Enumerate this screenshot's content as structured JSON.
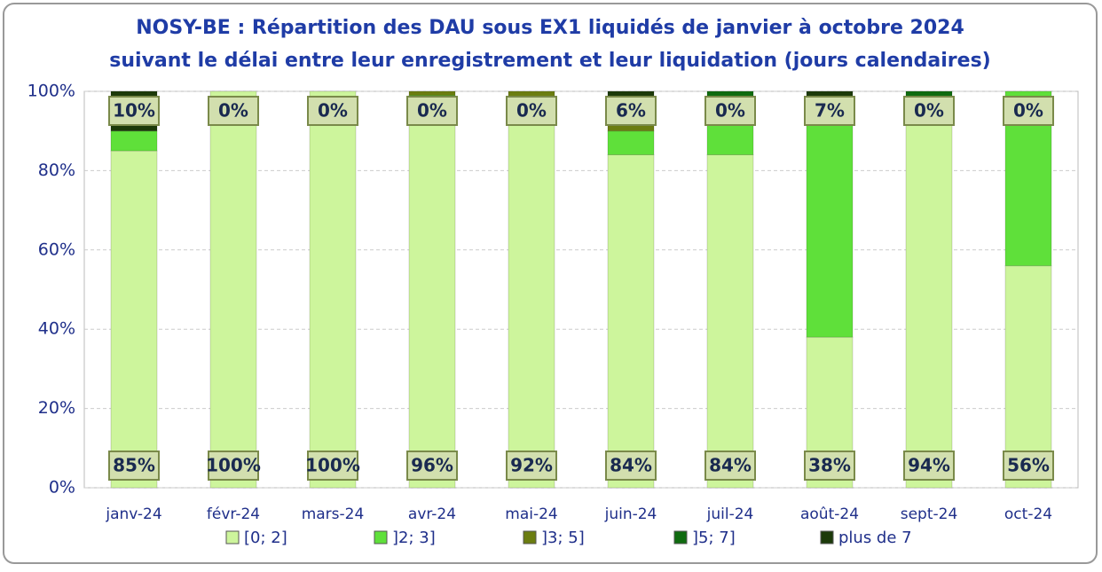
{
  "chart_data": {
    "type": "stacked_bar",
    "title": "NOSY-BE : Répartition des DAU sous EX1 liquidés de janvier à octobre 2024",
    "subtitle": "suivant le délai entre leur enregistrement et leur liquidation (jours calendaires)",
    "categories": [
      "janv-24",
      "févr-24",
      "mars-24",
      "avr-24",
      "mai-24",
      "juin-24",
      "juil-24",
      "août-24",
      "sept-24",
      "oct-24"
    ],
    "series": [
      {
        "name": "[0; 2]",
        "color": "#cdf59c",
        "values": [
          85,
          100,
          100,
          96,
          92,
          84,
          84,
          38,
          94,
          56
        ],
        "value_labels": [
          "85%",
          "100%",
          "100%",
          "96%",
          "92%",
          "84%",
          "84%",
          "38%",
          "94%",
          "56%"
        ]
      },
      {
        "name": "]2; 3]",
        "color": "#5fe03a",
        "values": [
          5,
          0,
          0,
          3,
          6,
          6,
          13,
          55,
          0,
          44
        ]
      },
      {
        "name": "]3; 5]",
        "color": "#6b7d10",
        "values": [
          0,
          0,
          0,
          1,
          2,
          2,
          0,
          0,
          0,
          0
        ]
      },
      {
        "name": "]5; 7]",
        "color": "#0f6b0f",
        "values": [
          0,
          0,
          0,
          0,
          0,
          2,
          3,
          0,
          6,
          0
        ]
      },
      {
        "name": "plus de 7",
        "color": "#1c3a0a",
        "values": [
          10,
          0,
          0,
          0,
          0,
          6,
          0,
          7,
          0,
          0
        ],
        "value_labels": [
          "10%",
          "0%",
          "0%",
          "0%",
          "0%",
          "6%",
          "0%",
          "7%",
          "0%",
          "0%"
        ]
      }
    ],
    "ylim": [
      0,
      100
    ],
    "yticks": [
      {
        "value": 0,
        "label": "0%"
      },
      {
        "value": 20,
        "label": "20%"
      },
      {
        "value": 40,
        "label": "40%"
      },
      {
        "value": 60,
        "label": "60%"
      },
      {
        "value": 80,
        "label": "80%"
      },
      {
        "value": 100,
        "label": "100%"
      }
    ],
    "grid": true
  }
}
